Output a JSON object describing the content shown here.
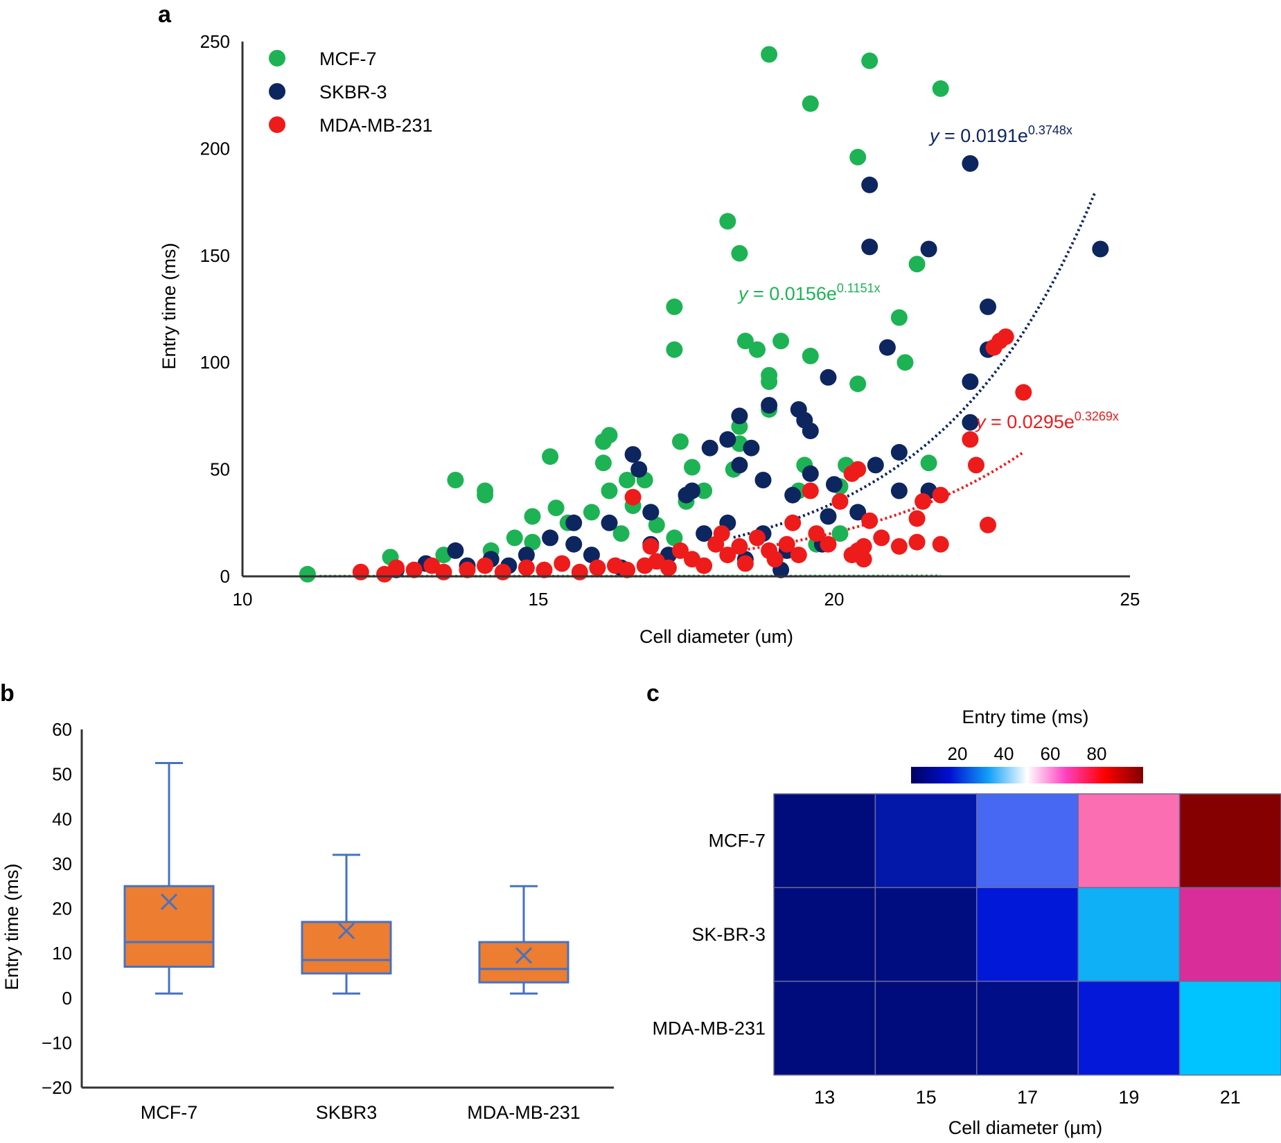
{
  "panel_labels": {
    "a": "a",
    "b": "b",
    "c": "c"
  },
  "chart_data": [
    {
      "panel": "a",
      "type": "scatter",
      "xlabel": "Cell diameter (um)",
      "ylabel": "Entry time (ms)",
      "xlim": [
        10,
        25
      ],
      "ylim": [
        0,
        250
      ],
      "xticks": [
        10,
        15,
        20,
        25
      ],
      "yticks": [
        0,
        50,
        100,
        150,
        200,
        250
      ],
      "grid": false,
      "legend_position": "top-left",
      "series": [
        {
          "name": "MCF-7",
          "color": "#1db354",
          "fit": {
            "equation": "y = 0.0156e",
            "exponent": "0.1151x",
            "a": 0.0156,
            "b": 0.1151,
            "x_range": [
              11.3,
              21.8
            ]
          },
          "points": [
            [
              11.1,
              1
            ],
            [
              12.5,
              9
            ],
            [
              13.6,
              45
            ],
            [
              14.1,
              40
            ],
            [
              14.1,
              38
            ],
            [
              15.2,
              56
            ],
            [
              14.9,
              28
            ],
            [
              15.3,
              32
            ],
            [
              16.1,
              63
            ],
            [
              16.2,
              66
            ],
            [
              16.1,
              53
            ],
            [
              17.3,
              126
            ],
            [
              17.3,
              106
            ],
            [
              18.2,
              166
            ],
            [
              18.4,
              151
            ],
            [
              18.5,
              110
            ],
            [
              18.7,
              106
            ],
            [
              19.1,
              110
            ],
            [
              18.9,
              94
            ],
            [
              18.9,
              91
            ],
            [
              19.6,
              103
            ],
            [
              18.9,
              244
            ],
            [
              19.6,
              221
            ],
            [
              20.6,
              241
            ],
            [
              21.8,
              228
            ],
            [
              20.4,
              196
            ],
            [
              21.4,
              146
            ],
            [
              21.1,
              121
            ],
            [
              21.2,
              100
            ],
            [
              20.4,
              90
            ],
            [
              21.6,
              53
            ],
            [
              18.9,
              78
            ],
            [
              18.4,
              70
            ],
            [
              18.4,
              62
            ],
            [
              17.4,
              63
            ],
            [
              16.5,
              45
            ],
            [
              16.8,
              45
            ],
            [
              16.2,
              40
            ],
            [
              17.6,
              51
            ],
            [
              18.3,
              50
            ],
            [
              19.5,
              52
            ],
            [
              19.4,
              40
            ],
            [
              20.1,
              42
            ],
            [
              20.2,
              52
            ],
            [
              17.5,
              35
            ],
            [
              16.9,
              30
            ],
            [
              15.9,
              30
            ],
            [
              15.5,
              25
            ],
            [
              14.6,
              18
            ],
            [
              14.9,
              16
            ],
            [
              13.4,
              10
            ],
            [
              14.2,
              12
            ],
            [
              16.4,
              20
            ],
            [
              17.3,
              18
            ],
            [
              18.0,
              15
            ],
            [
              19.7,
              15
            ],
            [
              20.1,
              20
            ],
            [
              17.8,
              40
            ],
            [
              16.6,
              33
            ],
            [
              17.0,
              24
            ]
          ]
        },
        {
          "name": "SKBR-3",
          "color": "#0d2660",
          "fit": {
            "equation": "y = 0.0191e",
            "exponent": "0.3748x",
            "a": 0.0191,
            "b": 0.3748,
            "x_range": [
              18.3,
              24.4
            ]
          },
          "points": [
            [
              12.6,
              3
            ],
            [
              13.1,
              6
            ],
            [
              13.6,
              12
            ],
            [
              14.2,
              8
            ],
            [
              14.8,
              10
            ],
            [
              15.6,
              25
            ],
            [
              16.6,
              57
            ],
            [
              16.7,
              50
            ],
            [
              17.5,
              38
            ],
            [
              17.9,
              60
            ],
            [
              18.2,
              64
            ],
            [
              18.4,
              75
            ],
            [
              18.4,
              52
            ],
            [
              18.9,
              80
            ],
            [
              19.4,
              78
            ],
            [
              19.5,
              73
            ],
            [
              19.6,
              68
            ],
            [
              19.9,
              93
            ],
            [
              18.8,
              45
            ],
            [
              19.3,
              38
            ],
            [
              20.6,
              183
            ],
            [
              20.6,
              154
            ],
            [
              20.9,
              107
            ],
            [
              21.6,
              153
            ],
            [
              22.3,
              193
            ],
            [
              24.5,
              153
            ],
            [
              22.6,
              126
            ],
            [
              22.6,
              106
            ],
            [
              22.3,
              91
            ],
            [
              22.3,
              72
            ],
            [
              21.1,
              58
            ],
            [
              21.6,
              40
            ],
            [
              21.1,
              40
            ],
            [
              20.7,
              52
            ],
            [
              20.4,
              30
            ],
            [
              19.6,
              48
            ],
            [
              19.9,
              28
            ],
            [
              20.0,
              43
            ],
            [
              18.6,
              60
            ],
            [
              17.6,
              40
            ],
            [
              16.9,
              30
            ],
            [
              16.2,
              25
            ],
            [
              15.2,
              18
            ],
            [
              15.6,
              15
            ],
            [
              16.9,
              15
            ],
            [
              17.8,
              20
            ],
            [
              18.2,
              25
            ],
            [
              18.8,
              20
            ],
            [
              19.2,
              12
            ],
            [
              19.8,
              15
            ],
            [
              13.8,
              5
            ],
            [
              14.5,
              5
            ],
            [
              15.9,
              10
            ],
            [
              17.2,
              10
            ],
            [
              18.5,
              8
            ],
            [
              16.4,
              4
            ],
            [
              19.1,
              3
            ]
          ]
        },
        {
          "name": "MDA-MB-231",
          "color": "#ee1b1b",
          "fit": {
            "equation": "y = 0.0295e",
            "exponent": "0.3269x",
            "a": 0.0295,
            "b": 0.3269,
            "x_range": [
              18.3,
              23.2
            ]
          },
          "points": [
            [
              12.0,
              2
            ],
            [
              12.4,
              1
            ],
            [
              12.6,
              4
            ],
            [
              12.9,
              3
            ],
            [
              13.2,
              5
            ],
            [
              13.4,
              2
            ],
            [
              13.8,
              3
            ],
            [
              14.1,
              5
            ],
            [
              14.4,
              2
            ],
            [
              14.8,
              4
            ],
            [
              15.1,
              3
            ],
            [
              15.4,
              6
            ],
            [
              15.7,
              2
            ],
            [
              16.0,
              4
            ],
            [
              16.3,
              5
            ],
            [
              16.6,
              37
            ],
            [
              16.5,
              3
            ],
            [
              16.8,
              5
            ],
            [
              17.0,
              7
            ],
            [
              17.2,
              4
            ],
            [
              17.4,
              12
            ],
            [
              17.6,
              8
            ],
            [
              17.8,
              5
            ],
            [
              18.0,
              15
            ],
            [
              18.2,
              10
            ],
            [
              18.4,
              14
            ],
            [
              18.5,
              6
            ],
            [
              18.7,
              18
            ],
            [
              18.9,
              12
            ],
            [
              19.0,
              8
            ],
            [
              19.2,
              15
            ],
            [
              19.4,
              10
            ],
            [
              19.6,
              40
            ],
            [
              19.7,
              20
            ],
            [
              19.9,
              15
            ],
            [
              20.1,
              35
            ],
            [
              20.3,
              48
            ],
            [
              20.4,
              50
            ],
            [
              20.6,
              26
            ],
            [
              20.8,
              18
            ],
            [
              20.5,
              14
            ],
            [
              20.3,
              10
            ],
            [
              20.5,
              8
            ],
            [
              21.5,
              35
            ],
            [
              21.4,
              27
            ],
            [
              21.8,
              38
            ],
            [
              22.3,
              64
            ],
            [
              22.4,
              52
            ],
            [
              22.6,
              24
            ],
            [
              22.8,
              110
            ],
            [
              22.9,
              112
            ],
            [
              22.7,
              107
            ],
            [
              23.2,
              86
            ],
            [
              21.4,
              16
            ],
            [
              21.8,
              15
            ],
            [
              21.1,
              14
            ],
            [
              20.4,
              12
            ],
            [
              19.3,
              25
            ],
            [
              18.1,
              20
            ],
            [
              16.9,
              14
            ]
          ]
        }
      ]
    },
    {
      "panel": "b",
      "type": "box",
      "ylabel": "Entry time (ms)",
      "ylim": [
        -20,
        60
      ],
      "yticks": [
        -20,
        -10,
        0,
        10,
        20,
        30,
        40,
        50,
        60
      ],
      "categories": [
        "MCF-7",
        "SKBR3",
        "MDA-MB-231"
      ],
      "box_color": "#ed7d31",
      "whisker_color": "#4472c4",
      "boxes": [
        {
          "min": 1,
          "q1": 7,
          "median": 12.5,
          "mean": 21.5,
          "q3": 25,
          "max": 52.5
        },
        {
          "min": 1,
          "q1": 5.5,
          "median": 8.5,
          "mean": 15,
          "q3": 17,
          "max": 32
        },
        {
          "min": 1,
          "q1": 3.5,
          "median": 6.5,
          "mean": 9.5,
          "q3": 12.5,
          "max": 25
        }
      ]
    },
    {
      "panel": "c",
      "type": "heatmap",
      "colorbar_title": "Entry time (ms)",
      "colorbar_ticks": [
        20,
        40,
        60,
        80
      ],
      "colorbar_range": [
        0,
        100
      ],
      "xlabel": "Cell diameter (µm)",
      "columns": [
        "13",
        "15",
        "17",
        "19",
        "21"
      ],
      "rows": [
        "MCF-7",
        "SK-BR-3",
        "MDA-MB-231"
      ],
      "values": [
        [
          5,
          8,
          30,
          65,
          95
        ],
        [
          4,
          5,
          12,
          35,
          75
        ],
        [
          4,
          5,
          7,
          15,
          40
        ]
      ],
      "cell_colors": [
        [
          "#000c7c",
          "#0317a9",
          "#4668f2",
          "#fc6eb2",
          "#850000"
        ],
        [
          "#000c7c",
          "#000d80",
          "#0218d9",
          "#0fb0f5",
          "#d92e9a"
        ],
        [
          "#000c7c",
          "#000c7c",
          "#000e88",
          "#0418da",
          "#00c4ff"
        ]
      ],
      "colorbar_stops": [
        "#000060",
        "#0010d0",
        "#10a0f8",
        "#ffffff",
        "#ff40c0",
        "#ff0000",
        "#800000"
      ]
    }
  ]
}
